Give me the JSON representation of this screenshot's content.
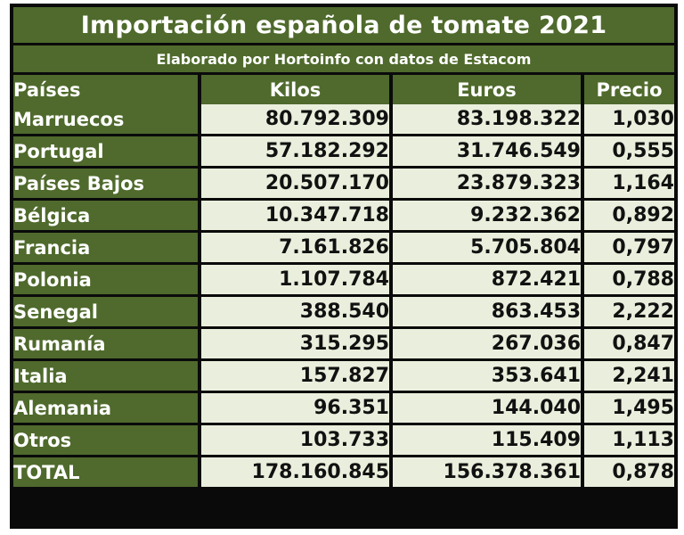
{
  "title": "Importación española de tomate 2021",
  "subtitle": "Elaborado por Hortoinfo con datos de Estacom",
  "headers": {
    "pais": "Países",
    "kilos": "Kilos",
    "euros": "Euros",
    "precio": "Precio"
  },
  "rows": [
    {
      "pais": "Marruecos",
      "kilos": "80.792.309",
      "euros": "83.198.322",
      "precio": "1,030"
    },
    {
      "pais": "Portugal",
      "kilos": "57.182.292",
      "euros": "31.746.549",
      "precio": "0,555"
    },
    {
      "pais": "Países Bajos",
      "kilos": "20.507.170",
      "euros": "23.879.323",
      "precio": "1,164"
    },
    {
      "pais": "Bélgica",
      "kilos": "10.347.718",
      "euros": "9.232.362",
      "precio": "0,892"
    },
    {
      "pais": "Francia",
      "kilos": "7.161.826",
      "euros": "5.705.804",
      "precio": "0,797"
    },
    {
      "pais": "Polonia",
      "kilos": "1.107.784",
      "euros": "872.421",
      "precio": "0,788"
    },
    {
      "pais": "Senegal",
      "kilos": "388.540",
      "euros": "863.453",
      "precio": "2,222"
    },
    {
      "pais": "Rumanía",
      "kilos": "315.295",
      "euros": "267.036",
      "precio": "0,847"
    },
    {
      "pais": "Italia",
      "kilos": "157.827",
      "euros": "353.641",
      "precio": "2,241"
    },
    {
      "pais": "Alemania",
      "kilos": "96.351",
      "euros": "144.040",
      "precio": "1,495"
    },
    {
      "pais": "Otros",
      "kilos": "103.733",
      "euros": "115.409",
      "precio": "1,113"
    }
  ],
  "total": {
    "pais": "TOTAL",
    "kilos": "178.160.845",
    "euros": "156.378.361",
    "precio": "0,878"
  },
  "colors": {
    "header_green": "#4f6a2c",
    "cell_light": "#e9efdc",
    "border": "#0a0a0a"
  }
}
